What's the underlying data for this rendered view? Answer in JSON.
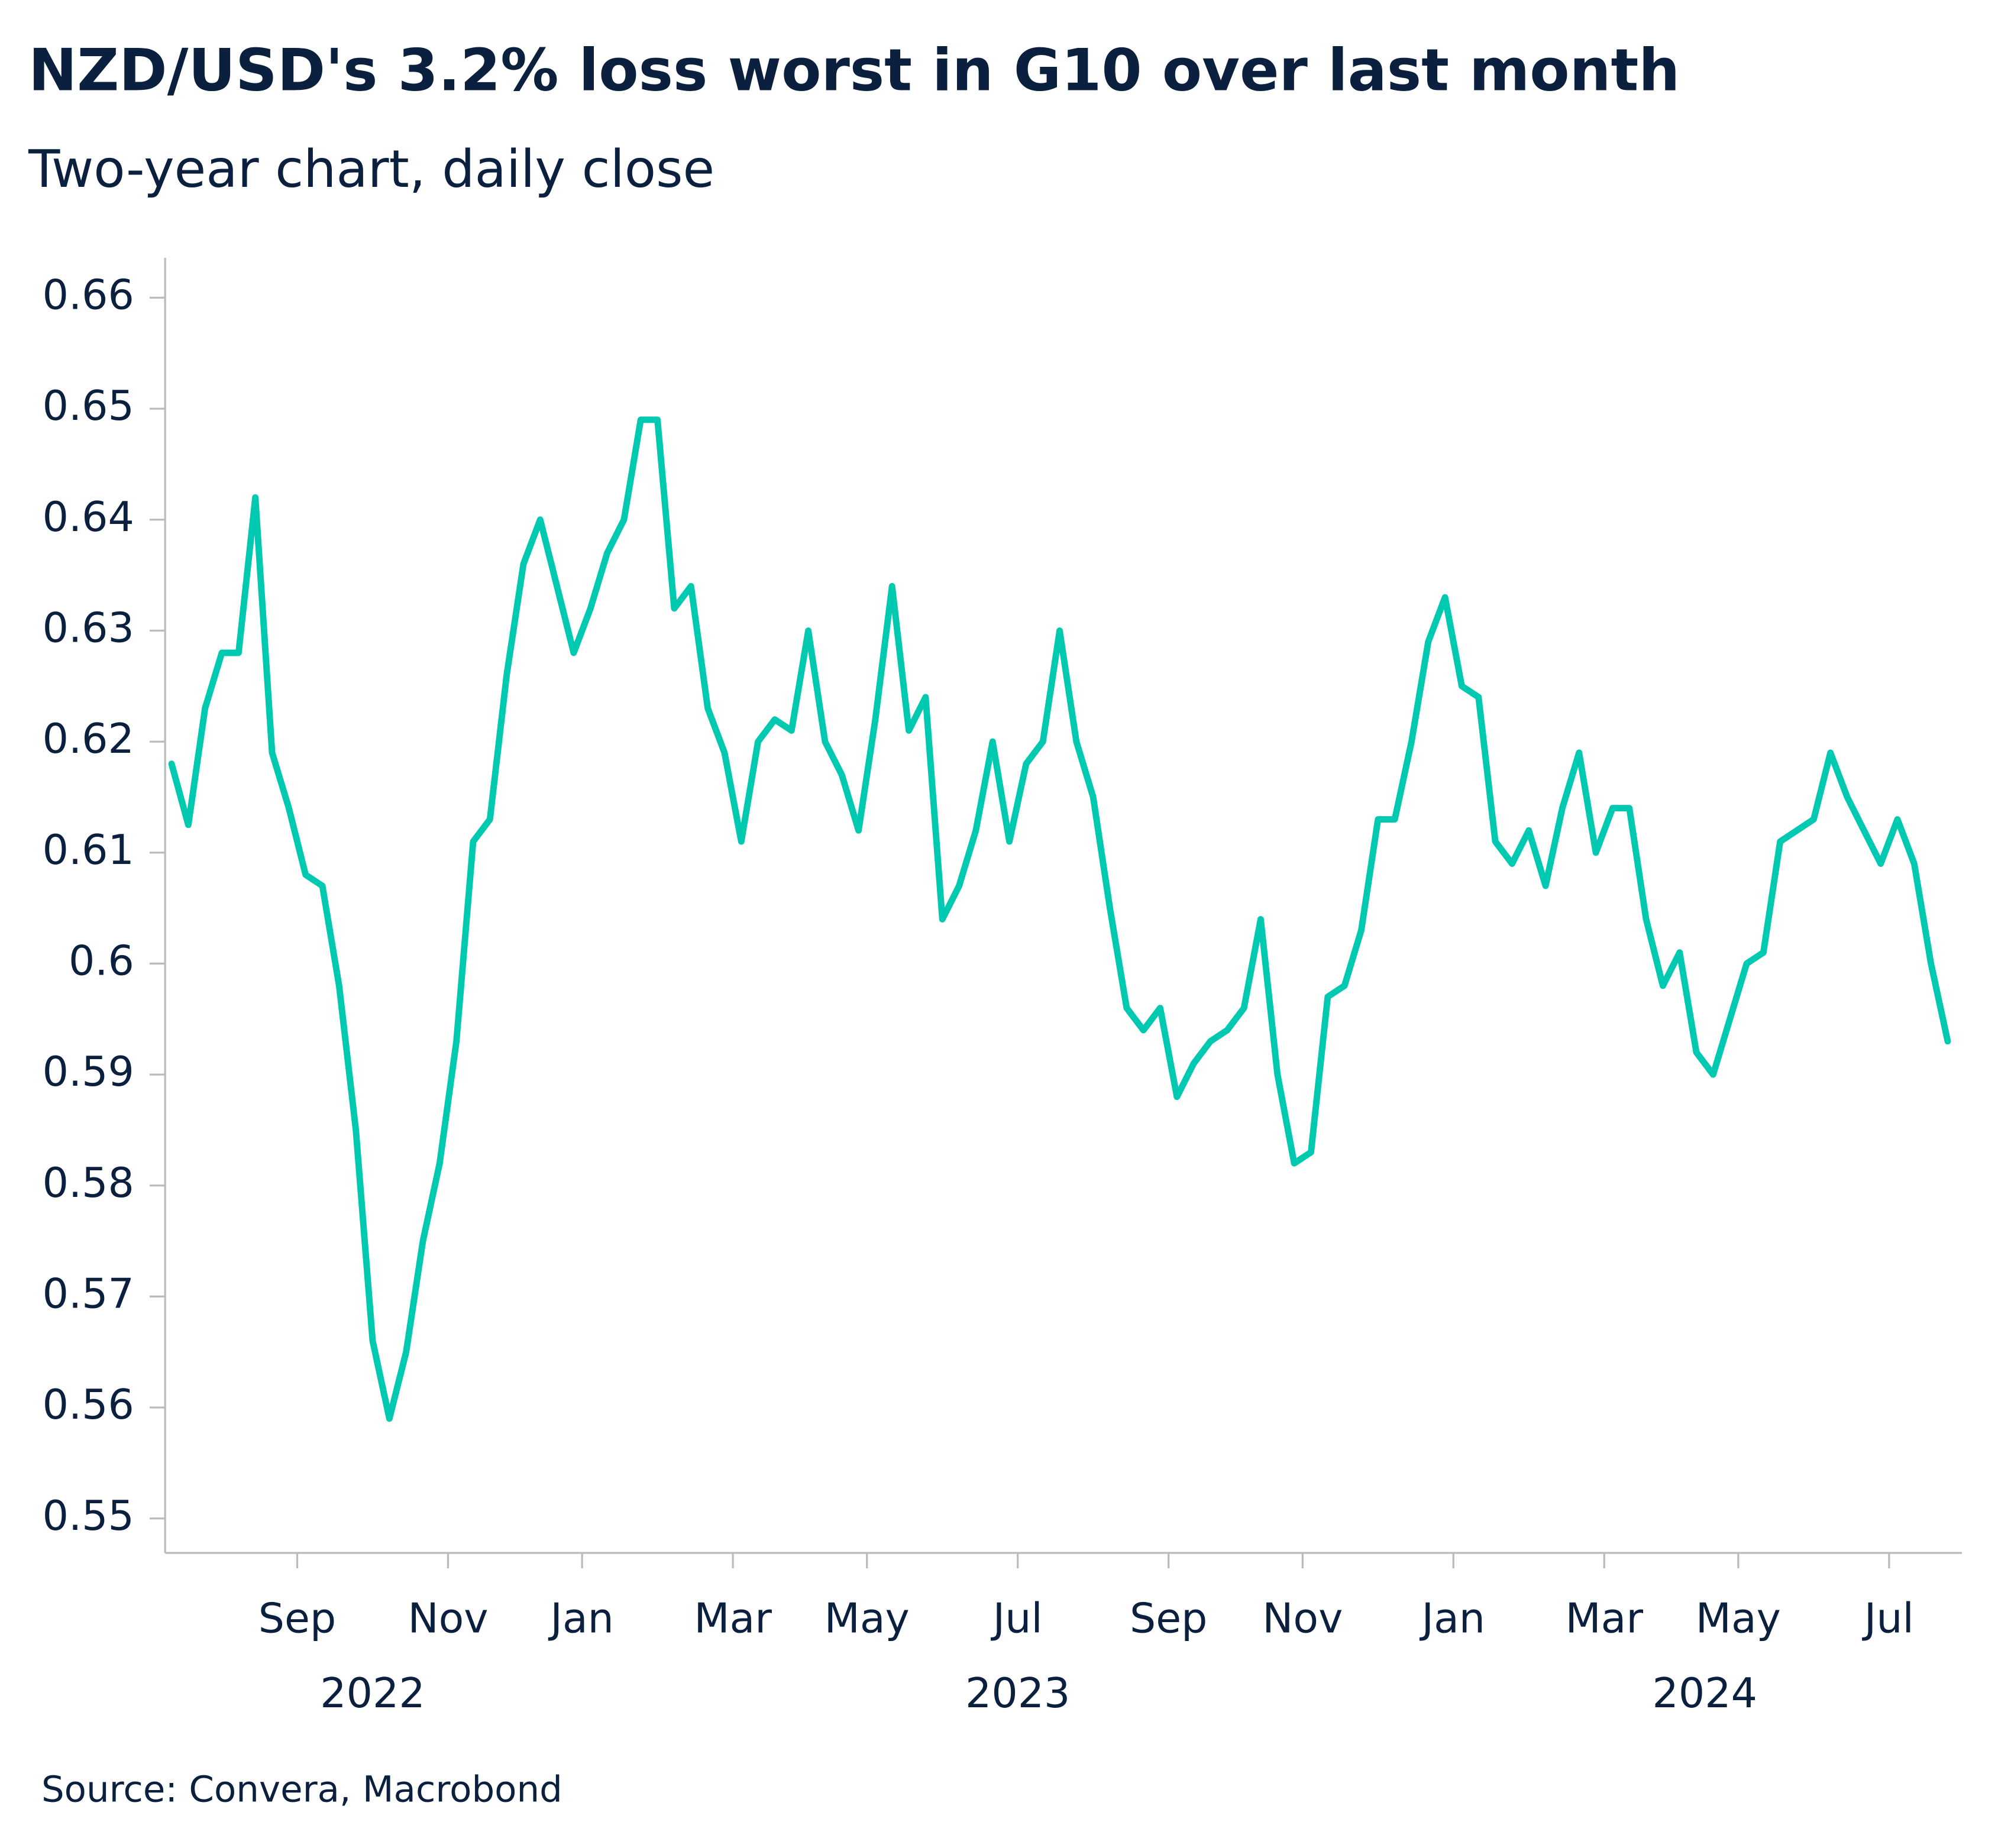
{
  "chart_data": {
    "type": "line",
    "title": "NZD/USD's 3.2% loss worst in G10 over last month",
    "subtitle": "Two-year chart, daily close",
    "source": "Source: Convera, Macrobond",
    "x": [
      "2022-07",
      "2022-07",
      "2022-07",
      "2022-07",
      "2022-08",
      "2022-08",
      "2022-08",
      "2022-08",
      "2022-09",
      "2022-09",
      "2022-09",
      "2022-09",
      "2022-09",
      "2022-10",
      "2022-10",
      "2022-10",
      "2022-10",
      "2022-11",
      "2022-11",
      "2022-11",
      "2022-11",
      "2022-12",
      "2022-12",
      "2022-12",
      "2022-12",
      "2023-01",
      "2023-01",
      "2023-01",
      "2023-01",
      "2023-01",
      "2023-02",
      "2023-02",
      "2023-02",
      "2023-02",
      "2023-03",
      "2023-03",
      "2023-03",
      "2023-03",
      "2023-04",
      "2023-04",
      "2023-04",
      "2023-04",
      "2023-05",
      "2023-05",
      "2023-05",
      "2023-05",
      "2023-05",
      "2023-06",
      "2023-06",
      "2023-06",
      "2023-06",
      "2023-07",
      "2023-07",
      "2023-07",
      "2023-07",
      "2023-07",
      "2023-08",
      "2023-08",
      "2023-08",
      "2023-08",
      "2023-09",
      "2023-09",
      "2023-09",
      "2023-09",
      "2023-10",
      "2023-10",
      "2023-10",
      "2023-10",
      "2023-11",
      "2023-11",
      "2023-11",
      "2023-11",
      "2023-11",
      "2023-12",
      "2023-12",
      "2023-12",
      "2023-12",
      "2024-01",
      "2024-01",
      "2024-01",
      "2024-01",
      "2024-02",
      "2024-02",
      "2024-02",
      "2024-02",
      "2024-02",
      "2024-03",
      "2024-03",
      "2024-03",
      "2024-03",
      "2024-04",
      "2024-04",
      "2024-04",
      "2024-04",
      "2024-05",
      "2024-05",
      "2024-05",
      "2024-05",
      "2024-05",
      "2024-06",
      "2024-06",
      "2024-06",
      "2024-06",
      "2024-07",
      "2024-07",
      "2024-07",
      "2024-07"
    ],
    "series": [
      {
        "name": "NZD/USD",
        "color": "#00c9b1",
        "values": [
          0.618,
          0.6125,
          0.623,
          0.628,
          0.628,
          0.642,
          0.619,
          0.614,
          0.608,
          0.607,
          0.598,
          0.585,
          0.566,
          0.559,
          0.565,
          0.575,
          0.582,
          0.593,
          0.611,
          0.613,
          0.626,
          0.636,
          0.64,
          0.634,
          0.628,
          0.632,
          0.637,
          0.64,
          0.649,
          0.649,
          0.632,
          0.634,
          0.623,
          0.619,
          0.611,
          0.62,
          0.622,
          0.621,
          0.63,
          0.62,
          0.617,
          0.612,
          0.622,
          0.634,
          0.621,
          0.624,
          0.604,
          0.607,
          0.612,
          0.62,
          0.611,
          0.618,
          0.62,
          0.63,
          0.62,
          0.615,
          0.605,
          0.596,
          0.594,
          0.596,
          0.588,
          0.591,
          0.593,
          0.594,
          0.596,
          0.604,
          0.59,
          0.582,
          0.583,
          0.597,
          0.598,
          0.603,
          0.613,
          0.613,
          0.62,
          0.629,
          0.633,
          0.625,
          0.624,
          0.611,
          0.609,
          0.612,
          0.607,
          0.614,
          0.619,
          0.61,
          0.614,
          0.614,
          0.604,
          0.598,
          0.601,
          0.592,
          0.59,
          0.595,
          0.6,
          0.601,
          0.611,
          0.612,
          0.613,
          0.619,
          0.615,
          0.612,
          0.609,
          0.613,
          0.609,
          0.6,
          0.593
        ]
      }
    ],
    "ylim": [
      0.5469,
      0.6636
    ],
    "yticks": [
      0.55,
      0.56,
      0.57,
      0.58,
      0.59,
      0.6,
      0.61,
      0.62,
      0.63,
      0.64,
      0.65,
      0.66
    ],
    "xticks": [
      {
        "value": "2022-09",
        "label": "Sep"
      },
      {
        "value": "2022-11",
        "label": "Nov"
      },
      {
        "value": "2023-01",
        "label": "Jan"
      },
      {
        "value": "2023-03",
        "label": "Mar"
      },
      {
        "value": "2023-05",
        "label": "May"
      },
      {
        "value": "2023-07",
        "label": "Jul"
      },
      {
        "value": "2023-09",
        "label": "Sep"
      },
      {
        "value": "2023-11",
        "label": "Nov"
      },
      {
        "value": "2024-01",
        "label": "Jan"
      },
      {
        "value": "2024-03",
        "label": "Mar"
      },
      {
        "value": "2024-05",
        "label": "May"
      },
      {
        "value": "2024-07",
        "label": "Jul"
      }
    ],
    "years": [
      "2022",
      "2023",
      "2024"
    ],
    "grid": false
  }
}
